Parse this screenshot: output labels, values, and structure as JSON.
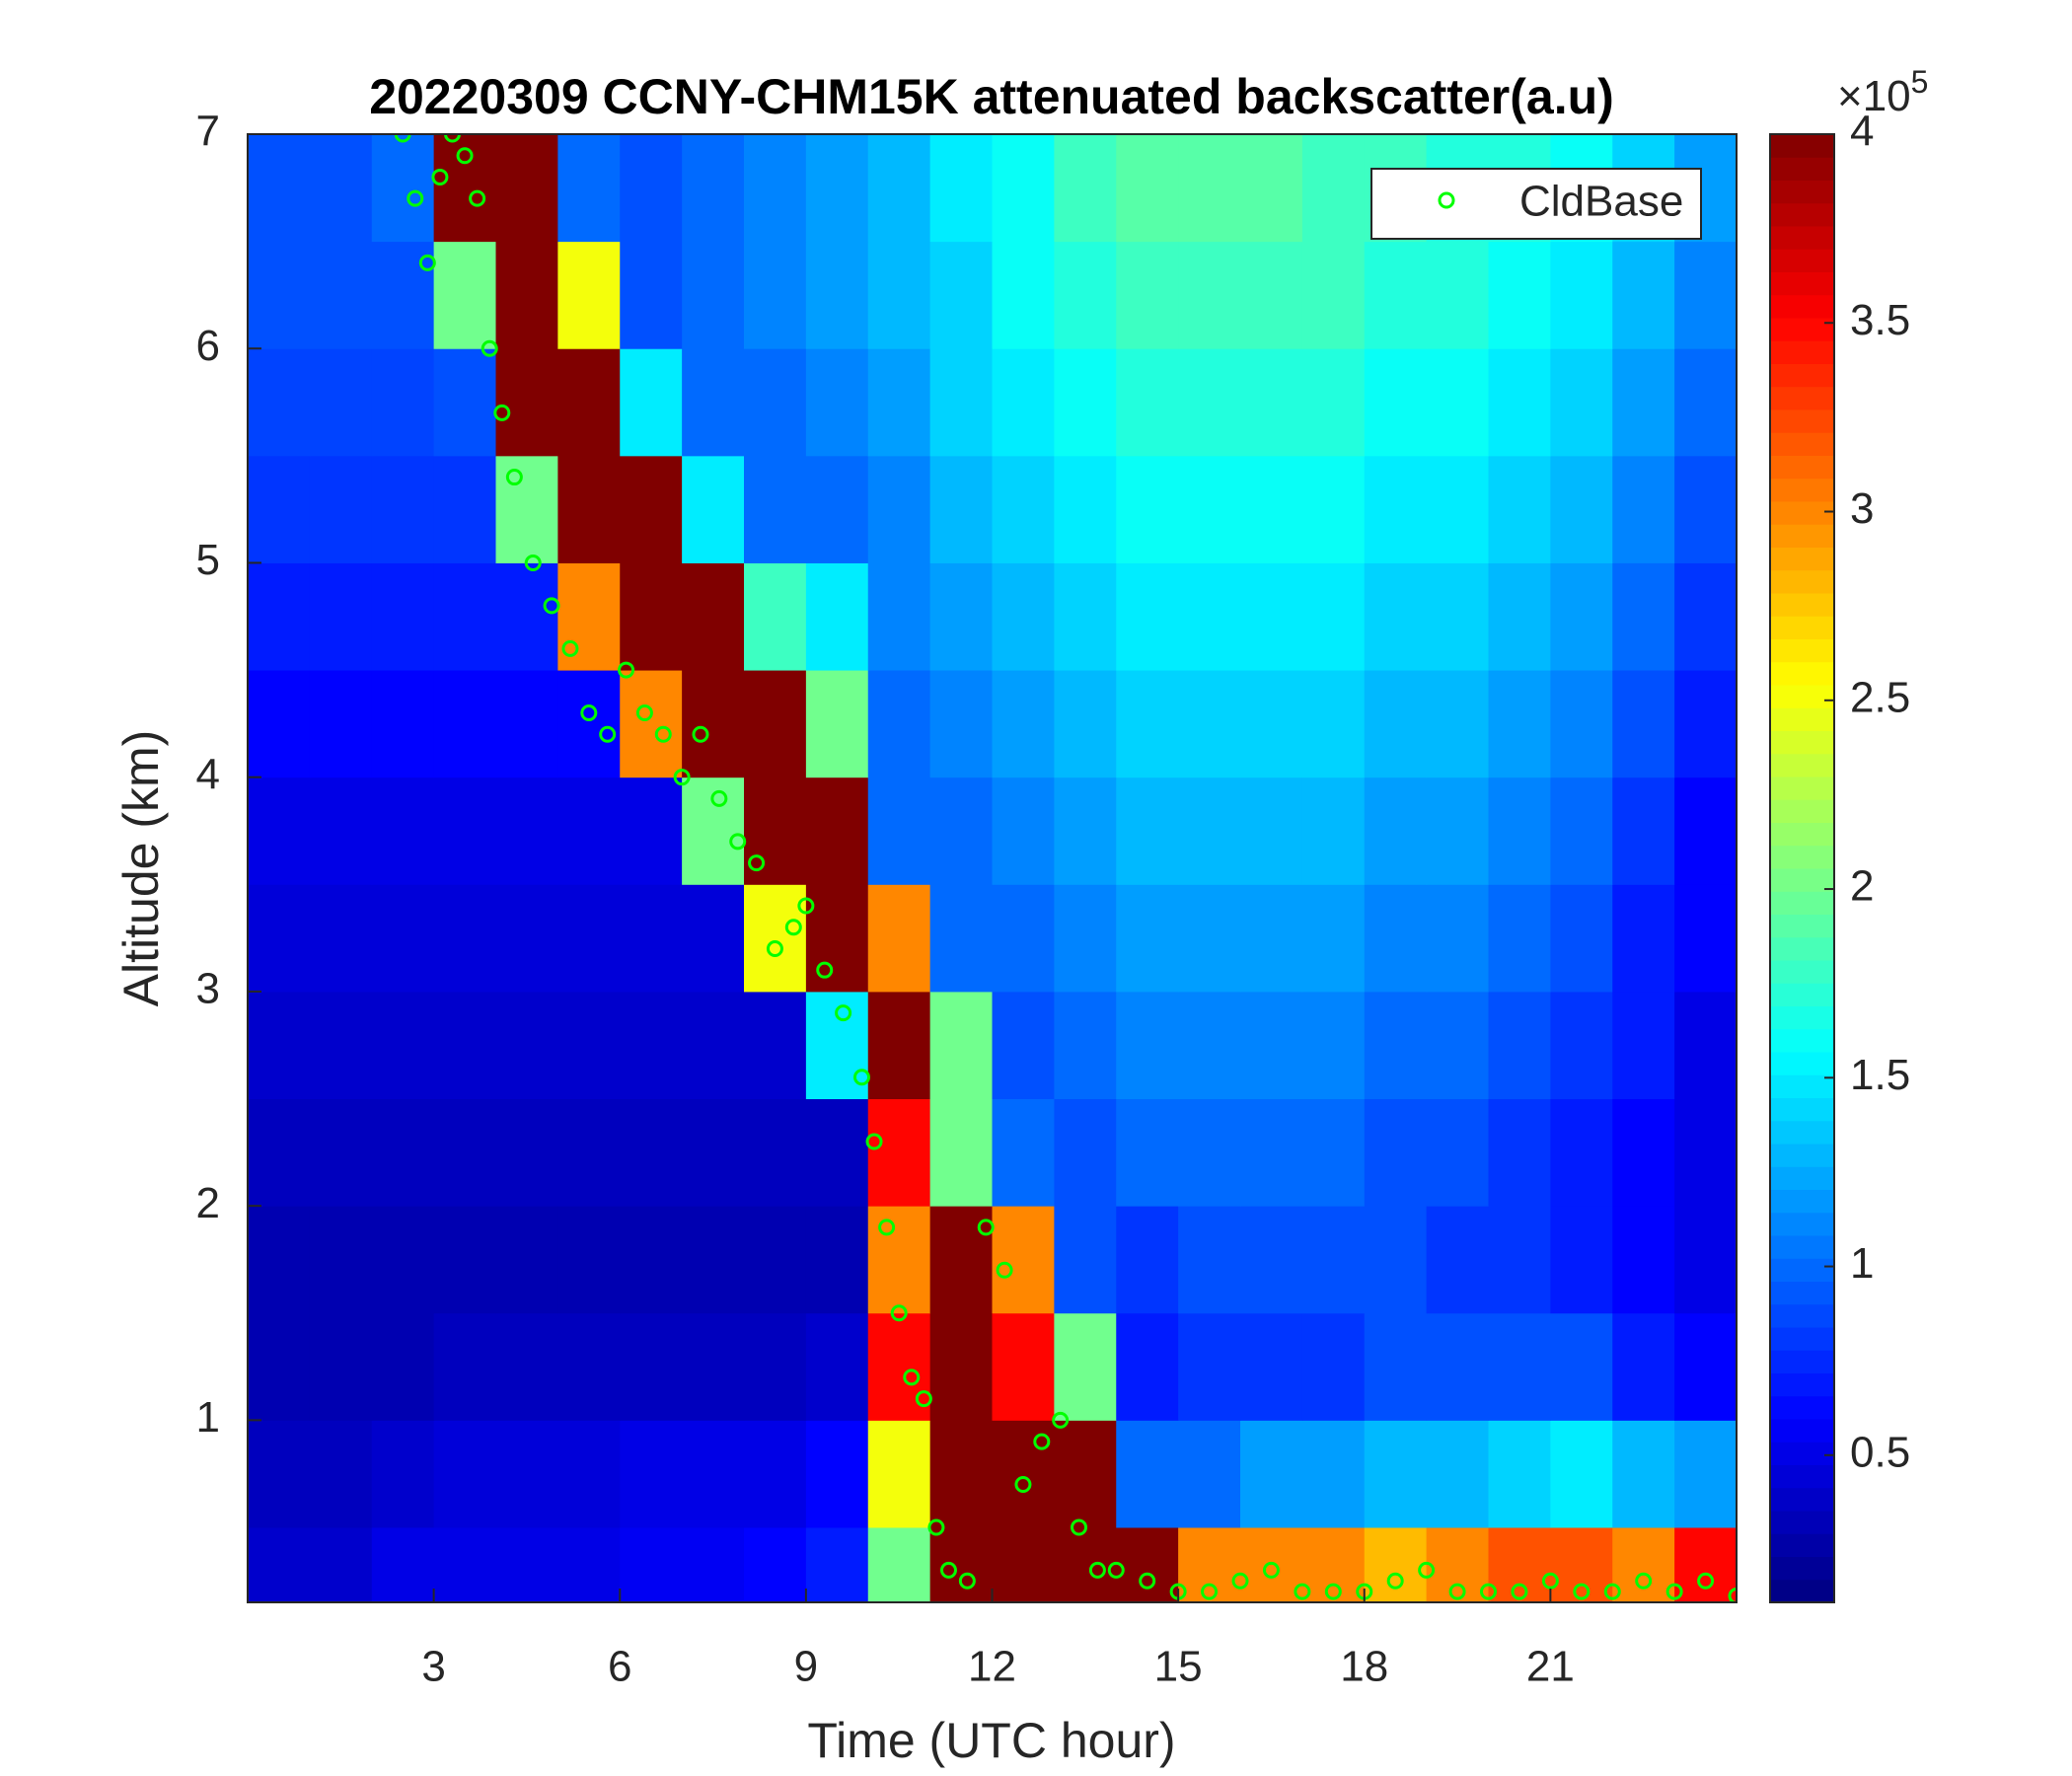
{
  "chart_data": {
    "type": "heatmap",
    "title": "20220309 CCNY-CHM15K attenuated backscatter(a.u)",
    "x_label": "Time (UTC hour)",
    "y_label": "Altitude (km)",
    "xlim": [
      0,
      24
    ],
    "ylim": [
      0.15,
      7
    ],
    "xticks": [
      3,
      6,
      9,
      12,
      15,
      18,
      21
    ],
    "yticks": [
      1,
      2,
      3,
      4,
      5,
      6,
      7
    ],
    "colormap": "jet",
    "clim": [
      0.11,
      4
    ],
    "cticks": [
      0.5,
      1,
      1.5,
      2,
      2.5,
      3,
      3.5,
      4
    ],
    "colorbar_exponent": {
      "base": "×10",
      "power": "5"
    },
    "xedges": [
      0,
      1,
      2,
      3,
      4,
      5,
      6,
      7,
      8,
      9,
      10,
      11,
      12,
      13,
      14,
      15,
      16,
      17,
      18,
      19,
      20,
      21,
      22,
      23,
      24
    ],
    "yedges": [
      0.15,
      0.5,
      1,
      1.5,
      2,
      2.5,
      3,
      3.5,
      4,
      4.5,
      5,
      5.5,
      6,
      6.5,
      7
    ],
    "z": [
      [
        0.4,
        0.4,
        0.5,
        0.5,
        0.5,
        0.5,
        0.55,
        0.55,
        0.6,
        0.7,
        2.0,
        4,
        4,
        4,
        4,
        3.0,
        3.0,
        3.0,
        2.8,
        3.0,
        3.2,
        3.2,
        3.0,
        3.5
      ],
      [
        0.35,
        0.35,
        0.4,
        0.45,
        0.45,
        0.45,
        0.5,
        0.5,
        0.5,
        0.6,
        2.5,
        4,
        4,
        4,
        1.0,
        1.0,
        1.2,
        1.2,
        1.3,
        1.3,
        1.4,
        1.5,
        1.3,
        1.2
      ],
      [
        0.3,
        0.3,
        0.3,
        0.35,
        0.35,
        0.35,
        0.35,
        0.35,
        0.35,
        0.4,
        3.5,
        4,
        3.5,
        2.0,
        0.7,
        0.8,
        0.8,
        0.8,
        0.9,
        0.9,
        0.9,
        0.9,
        0.7,
        0.6
      ],
      [
        0.3,
        0.3,
        0.3,
        0.3,
        0.3,
        0.3,
        0.3,
        0.3,
        0.3,
        0.3,
        3.0,
        4,
        3.0,
        0.9,
        0.8,
        0.9,
        0.9,
        0.9,
        0.9,
        0.8,
        0.8,
        0.7,
        0.6,
        0.5
      ],
      [
        0.35,
        0.35,
        0.35,
        0.35,
        0.35,
        0.35,
        0.35,
        0.35,
        0.35,
        0.35,
        3.5,
        2.0,
        1.0,
        0.9,
        1.0,
        1.0,
        1.0,
        1.0,
        0.9,
        0.9,
        0.8,
        0.7,
        0.6,
        0.5
      ],
      [
        0.4,
        0.4,
        0.4,
        0.4,
        0.4,
        0.4,
        0.4,
        0.4,
        0.4,
        1.5,
        4,
        2.0,
        0.9,
        1.0,
        1.1,
        1.1,
        1.1,
        1.1,
        1.0,
        1.0,
        0.9,
        0.8,
        0.7,
        0.5
      ],
      [
        0.45,
        0.45,
        0.45,
        0.45,
        0.45,
        0.45,
        0.45,
        0.45,
        2.5,
        4,
        3.0,
        1.0,
        1.0,
        1.1,
        1.2,
        1.2,
        1.2,
        1.2,
        1.1,
        1.1,
        1.0,
        0.9,
        0.7,
        0.6
      ],
      [
        0.5,
        0.5,
        0.5,
        0.5,
        0.5,
        0.5,
        0.5,
        2.0,
        4,
        4,
        1.0,
        1.0,
        1.1,
        1.2,
        1.3,
        1.3,
        1.3,
        1.3,
        1.2,
        1.2,
        1.1,
        1.0,
        0.8,
        0.6
      ],
      [
        0.6,
        0.6,
        0.6,
        0.6,
        0.6,
        0.6,
        3.0,
        4,
        4,
        2.0,
        1.0,
        1.1,
        1.2,
        1.3,
        1.4,
        1.4,
        1.4,
        1.4,
        1.3,
        1.3,
        1.2,
        1.1,
        0.9,
        0.7
      ],
      [
        0.7,
        0.7,
        0.7,
        0.7,
        0.7,
        3.0,
        4,
        4,
        1.8,
        1.5,
        1.1,
        1.2,
        1.3,
        1.4,
        1.5,
        1.5,
        1.5,
        1.5,
        1.4,
        1.4,
        1.3,
        1.2,
        1.0,
        0.8
      ],
      [
        0.8,
        0.8,
        0.8,
        0.8,
        2.0,
        4,
        4,
        1.5,
        1.0,
        1.0,
        1.1,
        1.3,
        1.4,
        1.5,
        1.6,
        1.6,
        1.6,
        1.6,
        1.5,
        1.5,
        1.4,
        1.3,
        1.1,
        0.9
      ],
      [
        0.85,
        0.85,
        0.85,
        0.9,
        4,
        4,
        1.5,
        1.0,
        1.0,
        1.1,
        1.2,
        1.4,
        1.5,
        1.6,
        1.7,
        1.7,
        1.7,
        1.7,
        1.6,
        1.6,
        1.5,
        1.4,
        1.2,
        1.0
      ],
      [
        0.9,
        0.9,
        0.9,
        2.0,
        4,
        2.5,
        0.9,
        1.0,
        1.1,
        1.2,
        1.3,
        1.4,
        1.6,
        1.7,
        1.8,
        1.8,
        1.8,
        1.8,
        1.7,
        1.7,
        1.6,
        1.5,
        1.3,
        1.1
      ],
      [
        0.9,
        0.9,
        1.0,
        4,
        4,
        1.0,
        0.9,
        1.0,
        1.1,
        1.2,
        1.3,
        1.5,
        1.6,
        1.8,
        1.9,
        1.9,
        1.9,
        1.8,
        1.8,
        1.7,
        1.7,
        1.6,
        1.4,
        1.2
      ]
    ],
    "series": [
      {
        "type": "scatter",
        "name": "CldBase",
        "color": "#00ff00",
        "x": [
          2.5,
          2.7,
          2.9,
          3.1,
          3.3,
          3.5,
          3.7,
          3.9,
          4.1,
          4.3,
          4.6,
          4.9,
          5.2,
          5.5,
          5.8,
          6.1,
          6.4,
          6.7,
          7.0,
          7.3,
          7.6,
          7.9,
          8.2,
          8.5,
          8.8,
          9.0,
          9.3,
          9.6,
          9.9,
          10.1,
          10.3,
          10.5,
          10.7,
          10.9,
          11.1,
          11.3,
          11.6,
          11.9,
          12.2,
          12.5,
          12.8,
          13.1,
          13.4,
          13.7,
          14.0,
          14.5,
          15,
          15.5,
          16,
          16.5,
          17,
          17.5,
          18,
          18.5,
          19,
          19.5,
          20,
          20.5,
          21,
          21.5,
          22,
          22.5,
          23,
          23.5,
          24
        ],
        "y": [
          7,
          6.7,
          6.4,
          6.8,
          7.0,
          6.9,
          6.7,
          6.0,
          5.7,
          5.4,
          5.0,
          4.8,
          4.6,
          4.3,
          4.2,
          4.5,
          4.3,
          4.2,
          4.0,
          4.2,
          3.9,
          3.7,
          3.6,
          3.2,
          3.3,
          3.4,
          3.1,
          2.9,
          2.6,
          2.3,
          1.9,
          1.5,
          1.2,
          1.1,
          0.5,
          0.3,
          0.25,
          1.9,
          1.7,
          0.7,
          0.9,
          1.0,
          0.5,
          0.3,
          0.3,
          0.25,
          0.2,
          0.2,
          0.25,
          0.3,
          0.2,
          0.2,
          0.2,
          0.25,
          0.3,
          0.2,
          0.2,
          0.2,
          0.25,
          0.2,
          0.2,
          0.25,
          0.2,
          0.25,
          0.18
        ]
      }
    ],
    "legend": "northeast"
  }
}
